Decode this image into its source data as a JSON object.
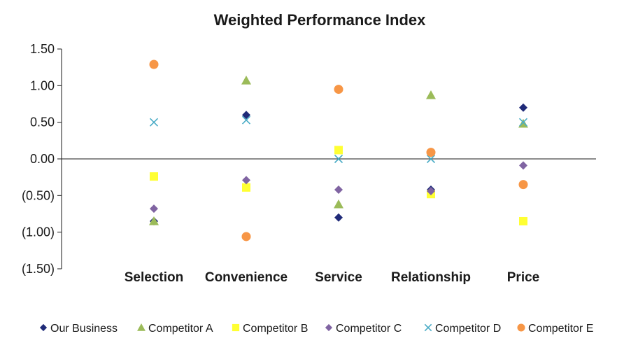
{
  "chart_data": {
    "type": "scatter",
    "title": "Weighted Performance Index",
    "categories": [
      "Selection",
      "Convenience",
      "Service",
      "Relationship",
      "Price"
    ],
    "y_ticks": [
      "1.50",
      "1.00",
      "0.50",
      "0.00",
      "(0.50)",
      "(1.00)",
      "(1.50)"
    ],
    "ylim": [
      -1.5,
      1.5
    ],
    "grid": false,
    "legend_placement": "bottom",
    "series": [
      {
        "name": "Our Business",
        "marker": "diamond",
        "color": "#1f2a78",
        "values": [
          -0.85,
          0.6,
          -0.8,
          -0.42,
          0.7
        ]
      },
      {
        "name": "Competitor A",
        "marker": "triangle",
        "color": "#9bbb59",
        "values": [
          -0.85,
          1.07,
          -0.62,
          0.87,
          0.48
        ]
      },
      {
        "name": "Competitor B",
        "marker": "square",
        "color": "#ffff33",
        "values": [
          -0.24,
          -0.39,
          0.12,
          -0.48,
          -0.85
        ]
      },
      {
        "name": "Competitor C",
        "marker": "diamond",
        "color": "#8064a2",
        "values": [
          -0.68,
          -0.29,
          -0.42,
          -0.44,
          -0.09
        ]
      },
      {
        "name": "Competitor D",
        "marker": "x",
        "color": "#4bacc6",
        "values": [
          0.5,
          0.53,
          0.0,
          0.0,
          0.5
        ]
      },
      {
        "name": "Competitor E",
        "marker": "circle",
        "color": "#f79646",
        "values": [
          1.29,
          -1.06,
          0.95,
          0.09,
          -0.35
        ]
      }
    ]
  }
}
